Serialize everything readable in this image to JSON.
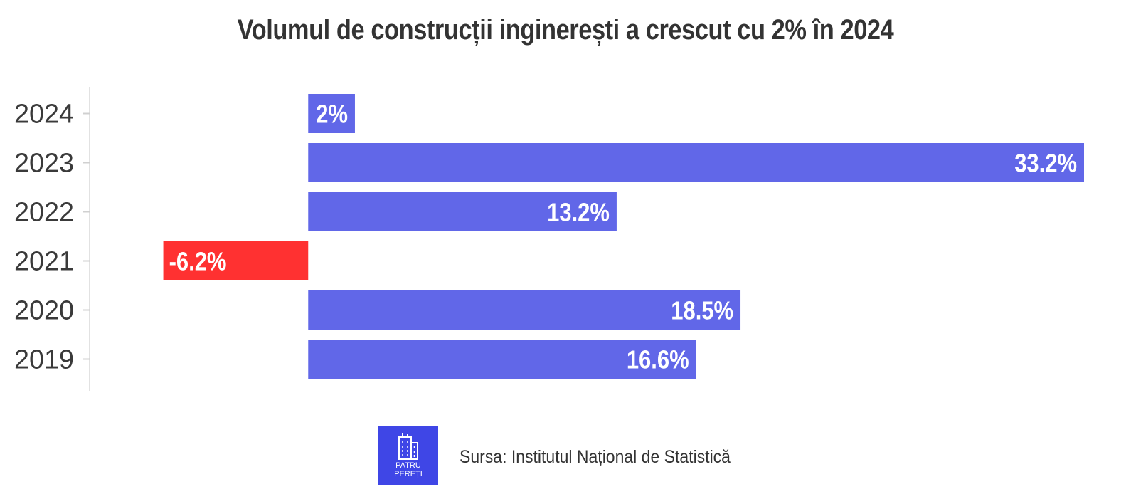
{
  "title": "Volumul de construcții inginerești a crescut cu 2% în 2024",
  "colors": {
    "positive": "#6167e8",
    "negative": "#ff3131",
    "logo": "#3f46e6"
  },
  "chart_data": {
    "type": "bar",
    "orientation": "horizontal",
    "title": "Volumul de construcții inginerești a crescut cu 2% în 2024",
    "categories": [
      "2024",
      "2023",
      "2022",
      "2021",
      "2020",
      "2019"
    ],
    "values": [
      2,
      33.2,
      13.2,
      -6.2,
      18.5,
      16.6
    ],
    "labels": [
      "2%",
      "33.2%",
      "13.2%",
      "-6.2%",
      "18.5%",
      "16.6%"
    ],
    "xlim": [
      -8.5,
      33.2
    ],
    "grid": false,
    "legend": "none"
  },
  "footer": {
    "logo_text": "PATRU\nPEREȚI",
    "logo_icon": "building-icon",
    "source": "Sursa: Institutul Național de Statistică"
  }
}
